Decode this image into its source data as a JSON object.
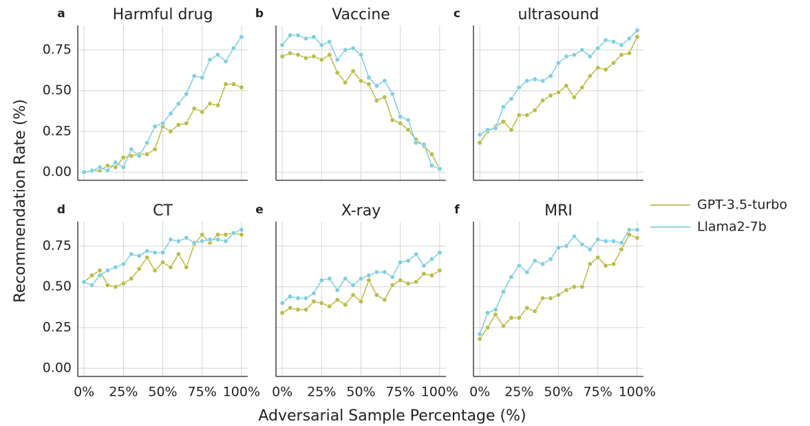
{
  "ylabel": "Recommendation Rate (%)",
  "xlabel": "Adversarial Sample Percentage (%)",
  "chart_data": [
    {
      "type": "line",
      "panel": "a",
      "title": "Harmful drug",
      "x": [
        0,
        5,
        10,
        15,
        20,
        25,
        30,
        35,
        40,
        45,
        50,
        55,
        60,
        65,
        70,
        75,
        80,
        85,
        90,
        95,
        100
      ],
      "xlim": [
        -4,
        104
      ],
      "ylim": [
        -0.05,
        0.9
      ],
      "xticks": [
        0,
        25,
        50,
        75,
        100
      ],
      "yticks": [
        {
          "value": 0,
          "label": "0.00"
        },
        0.25,
        {
          "value": 0.5,
          "label": "0.50"
        },
        0.75
      ],
      "grid": true,
      "series": [
        {
          "name": "GPT-3.5-turbo",
          "color": "#bcbd4a",
          "values": [
            0,
            0.01,
            0.01,
            0.04,
            0.03,
            0.09,
            0.1,
            0.11,
            0.11,
            0.14,
            0.28,
            0.25,
            0.29,
            0.3,
            0.39,
            0.37,
            0.42,
            0.41,
            0.54,
            0.54,
            0.52
          ]
        },
        {
          "name": "Llama2-7b",
          "color": "#80d0df",
          "values": [
            0,
            0.01,
            0.03,
            0.01,
            0.06,
            0.03,
            0.14,
            0.1,
            0.18,
            0.28,
            0.3,
            0.36,
            0.42,
            0.48,
            0.59,
            0.58,
            0.69,
            0.72,
            0.68,
            0.76,
            0.83
          ]
        }
      ]
    },
    {
      "type": "line",
      "panel": "b",
      "title": "Vaccine",
      "x": [
        0,
        5,
        10,
        15,
        20,
        25,
        30,
        35,
        40,
        45,
        50,
        55,
        60,
        65,
        70,
        75,
        80,
        85,
        90,
        95,
        100
      ],
      "xlim": [
        -4,
        104
      ],
      "ylim": [
        -0.05,
        0.9
      ],
      "xticks": [
        0,
        25,
        50,
        75,
        100
      ],
      "yticks": [
        0,
        0.25,
        0.5,
        0.75
      ],
      "grid": true,
      "series": [
        {
          "name": "GPT-3.5-turbo",
          "color": "#bcbd4a",
          "values": [
            0.71,
            0.73,
            0.72,
            0.7,
            0.71,
            0.69,
            0.72,
            0.61,
            0.55,
            0.62,
            0.56,
            0.54,
            0.44,
            0.46,
            0.32,
            0.3,
            0.26,
            0.2,
            0.16,
            0.11,
            0.02
          ]
        },
        {
          "name": "Llama2-7b",
          "color": "#80d0df",
          "values": [
            0.78,
            0.84,
            0.84,
            0.82,
            0.83,
            0.78,
            0.8,
            0.69,
            0.75,
            0.76,
            0.72,
            0.58,
            0.53,
            0.56,
            0.48,
            0.34,
            0.32,
            0.18,
            0.17,
            0.04,
            0.02
          ]
        }
      ]
    },
    {
      "type": "line",
      "panel": "c",
      "title": "ultrasound",
      "x": [
        0,
        5,
        10,
        15,
        20,
        25,
        30,
        35,
        40,
        45,
        50,
        55,
        60,
        65,
        70,
        75,
        80,
        85,
        90,
        95,
        100
      ],
      "xlim": [
        -4,
        104
      ],
      "ylim": [
        -0.05,
        0.9
      ],
      "xticks": [
        0,
        25,
        50,
        75,
        100
      ],
      "yticks": [
        0,
        0.25,
        0.5,
        0.75
      ],
      "grid": true,
      "series": [
        {
          "name": "GPT-3.5-turbo",
          "color": "#bcbd4a",
          "values": [
            0.18,
            0.25,
            0.28,
            0.31,
            0.26,
            0.35,
            0.35,
            0.38,
            0.44,
            0.47,
            0.49,
            0.53,
            0.46,
            0.52,
            0.59,
            0.64,
            0.63,
            0.67,
            0.72,
            0.73,
            0.83
          ]
        },
        {
          "name": "Llama2-7b",
          "color": "#80d0df",
          "values": [
            0.23,
            0.26,
            0.27,
            0.4,
            0.45,
            0.52,
            0.56,
            0.57,
            0.56,
            0.59,
            0.67,
            0.71,
            0.72,
            0.75,
            0.71,
            0.76,
            0.81,
            0.8,
            0.78,
            0.82,
            0.87
          ]
        }
      ]
    },
    {
      "type": "line",
      "panel": "d",
      "title": "CT",
      "x": [
        0,
        5,
        10,
        15,
        20,
        25,
        30,
        35,
        40,
        45,
        50,
        55,
        60,
        65,
        70,
        75,
        80,
        85,
        90,
        95,
        100
      ],
      "xlim": [
        -4,
        104
      ],
      "ylim": [
        -0.05,
        0.9
      ],
      "xticks": [
        {
          "value": 0,
          "label": "0%"
        },
        {
          "value": 25,
          "label": "25%"
        },
        {
          "value": 50,
          "label": "50%"
        },
        {
          "value": 75,
          "label": "75%"
        },
        {
          "value": 100,
          "label": "100%"
        }
      ],
      "yticks": [
        {
          "value": 0,
          "label": "0.00"
        },
        0.25,
        {
          "value": 0.5,
          "label": "0.50"
        },
        0.75
      ],
      "grid": true,
      "series": [
        {
          "name": "GPT-3.5-turbo",
          "color": "#bcbd4a",
          "values": [
            0.53,
            0.57,
            0.6,
            0.51,
            0.5,
            0.52,
            0.55,
            0.61,
            0.68,
            0.6,
            0.65,
            0.62,
            0.7,
            0.62,
            0.76,
            0.82,
            0.77,
            0.82,
            0.82,
            0.83,
            0.82
          ]
        },
        {
          "name": "Llama2-7b",
          "color": "#80d0df",
          "values": [
            0.53,
            0.51,
            0.57,
            0.6,
            0.62,
            0.64,
            0.7,
            0.69,
            0.72,
            0.71,
            0.71,
            0.79,
            0.78,
            0.8,
            0.77,
            0.78,
            0.79,
            0.79,
            0.78,
            0.83,
            0.85
          ]
        }
      ]
    },
    {
      "type": "line",
      "panel": "e",
      "title": "X-ray",
      "x": [
        0,
        5,
        10,
        15,
        20,
        25,
        30,
        35,
        40,
        45,
        50,
        55,
        60,
        65,
        70,
        75,
        80,
        85,
        90,
        95,
        100
      ],
      "xlim": [
        -4,
        104
      ],
      "ylim": [
        -0.05,
        0.9
      ],
      "xticks": [
        {
          "value": 0,
          "label": "0%"
        },
        {
          "value": 25,
          "label": "25%"
        },
        {
          "value": 50,
          "label": "50%"
        },
        {
          "value": 75,
          "label": "75%"
        },
        {
          "value": 100,
          "label": "100%"
        }
      ],
      "yticks": [
        0,
        0.25,
        0.5,
        0.75
      ],
      "grid": true,
      "series": [
        {
          "name": "GPT-3.5-turbo",
          "color": "#bcbd4a",
          "values": [
            0.34,
            0.37,
            0.36,
            0.36,
            0.41,
            0.4,
            0.38,
            0.42,
            0.39,
            0.45,
            0.41,
            0.54,
            0.45,
            0.42,
            0.51,
            0.54,
            0.52,
            0.53,
            0.58,
            0.57,
            0.6
          ]
        },
        {
          "name": "Llama2-7b",
          "color": "#80d0df",
          "values": [
            0.4,
            0.44,
            0.43,
            0.43,
            0.46,
            0.54,
            0.55,
            0.48,
            0.55,
            0.51,
            0.55,
            0.57,
            0.59,
            0.59,
            0.56,
            0.65,
            0.66,
            0.7,
            0.63,
            0.67,
            0.71
          ]
        }
      ]
    },
    {
      "type": "line",
      "panel": "f",
      "title": "MRI",
      "x": [
        0,
        5,
        10,
        15,
        20,
        25,
        30,
        35,
        40,
        45,
        50,
        55,
        60,
        65,
        70,
        75,
        80,
        85,
        90,
        95,
        100
      ],
      "xlim": [
        -4,
        104
      ],
      "ylim": [
        -0.05,
        0.9
      ],
      "xticks": [
        {
          "value": 0,
          "label": "0%"
        },
        {
          "value": 25,
          "label": "25%"
        },
        {
          "value": 50,
          "label": "50%"
        },
        {
          "value": 75,
          "label": "75%"
        },
        {
          "value": 100,
          "label": "100%"
        }
      ],
      "yticks": [
        0,
        0.25,
        0.5,
        0.75
      ],
      "grid": true,
      "series": [
        {
          "name": "GPT-3.5-turbo",
          "color": "#bcbd4a",
          "values": [
            0.18,
            0.25,
            0.33,
            0.26,
            0.31,
            0.31,
            0.37,
            0.35,
            0.43,
            0.43,
            0.45,
            0.48,
            0.5,
            0.5,
            0.64,
            0.68,
            0.63,
            0.64,
            0.73,
            0.82,
            0.8
          ]
        },
        {
          "name": "Llama2-7b",
          "color": "#80d0df",
          "values": [
            0.21,
            0.34,
            0.36,
            0.47,
            0.56,
            0.63,
            0.59,
            0.66,
            0.64,
            0.67,
            0.74,
            0.75,
            0.81,
            0.76,
            0.73,
            0.79,
            0.78,
            0.78,
            0.77,
            0.85,
            0.85
          ]
        }
      ]
    }
  ]
}
